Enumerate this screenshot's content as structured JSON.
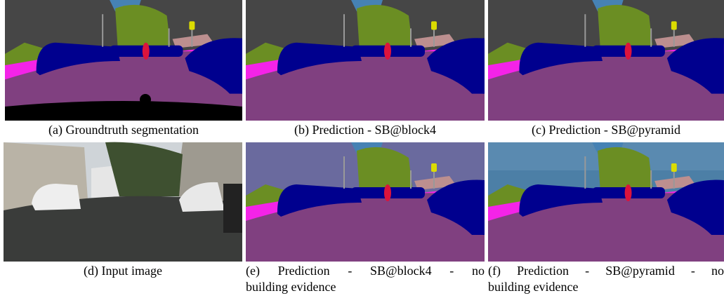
{
  "panels": [
    {
      "caption": [
        "(a) Groundtruth segmentation"
      ]
    },
    {
      "caption": [
        "(b) Prediction - SB@block4"
      ]
    },
    {
      "caption": [
        "(c) Prediction - SB@pyramid"
      ]
    },
    {
      "caption": [
        "(d) Input image"
      ]
    },
    {
      "caption": [
        "(e) Prediction - SB@block4 - no",
        "building evidence"
      ]
    },
    {
      "caption": [
        "(f) Prediction - SB@pyramid - no",
        "building evidence"
      ]
    }
  ]
}
